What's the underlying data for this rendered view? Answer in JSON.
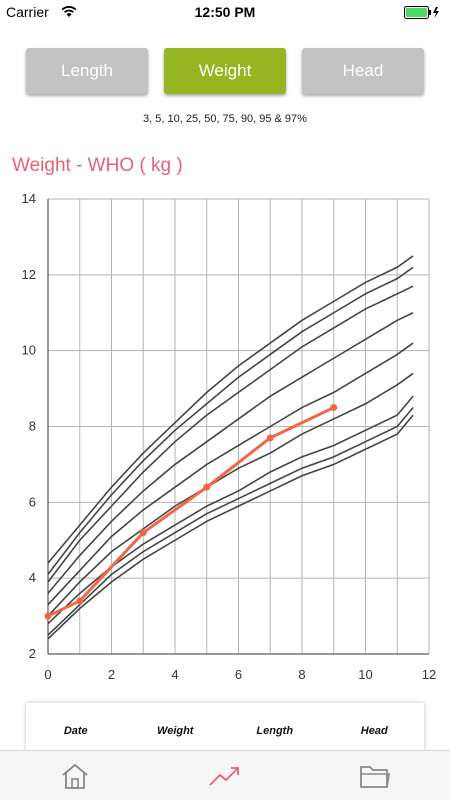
{
  "status": {
    "carrier": "Carrier",
    "time": "12:50 PM",
    "wifi_icon": "wifi-icon",
    "battery_icon": "battery-icon"
  },
  "tabs_top": {
    "length": "Length",
    "weight": "Weight",
    "head": "Head",
    "active": "Weight",
    "active_color": "#96b621",
    "inactive_color": "#c3c3c3"
  },
  "percentile_note": "3, 5, 10, 25, 50, 75, 90, 95 & 97%",
  "chart_title": "Weight - WHO ( kg )",
  "chart_data": {
    "type": "line",
    "xlim": [
      0,
      12
    ],
    "ylim": [
      2,
      14
    ],
    "x_ticks": [
      0,
      2,
      4,
      6,
      8,
      10,
      12
    ],
    "y_ticks": [
      2,
      4,
      6,
      8,
      10,
      12,
      14
    ],
    "grid": true,
    "percentile_x": [
      0,
      1,
      2,
      3,
      4,
      5,
      6,
      7,
      8,
      9,
      10,
      11,
      11.5
    ],
    "percentile_curves": [
      [
        2.4,
        3.2,
        3.9,
        4.5,
        5.0,
        5.5,
        5.9,
        6.3,
        6.7,
        7.0,
        7.4,
        7.8,
        8.3
      ],
      [
        2.5,
        3.3,
        4.1,
        4.7,
        5.2,
        5.7,
        6.1,
        6.5,
        6.9,
        7.2,
        7.6,
        8.0,
        8.5
      ],
      [
        2.8,
        3.6,
        4.3,
        4.9,
        5.4,
        5.9,
        6.3,
        6.8,
        7.2,
        7.5,
        7.9,
        8.3,
        8.8
      ],
      [
        3.0,
        3.9,
        4.7,
        5.3,
        5.9,
        6.4,
        6.9,
        7.3,
        7.8,
        8.2,
        8.6,
        9.1,
        9.4
      ],
      [
        3.3,
        4.2,
        5.1,
        5.8,
        6.4,
        7.0,
        7.5,
        8.0,
        8.5,
        8.9,
        9.4,
        9.9,
        10.2
      ],
      [
        3.6,
        4.6,
        5.5,
        6.3,
        7.0,
        7.6,
        8.2,
        8.8,
        9.3,
        9.8,
        10.3,
        10.8,
        11.0
      ],
      [
        3.9,
        5.0,
        5.9,
        6.8,
        7.6,
        8.3,
        8.9,
        9.5,
        10.1,
        10.6,
        11.1,
        11.5,
        11.7
      ],
      [
        4.1,
        5.2,
        6.2,
        7.1,
        7.9,
        8.6,
        9.3,
        9.9,
        10.5,
        11.0,
        11.5,
        11.9,
        12.2
      ],
      [
        4.4,
        5.4,
        6.4,
        7.3,
        8.1,
        8.9,
        9.6,
        10.2,
        10.8,
        11.3,
        11.8,
        12.2,
        12.5
      ]
    ],
    "child_series": {
      "x": [
        0,
        1,
        3,
        5,
        7,
        9
      ],
      "y": [
        3.0,
        3.4,
        5.2,
        6.4,
        7.7,
        8.5
      ],
      "color": "#f26545"
    },
    "percentile_color": "#444444",
    "grid_color": "#b5b5b5"
  },
  "table": {
    "headers": [
      "Date",
      "Weight",
      "Length",
      "Head"
    ]
  },
  "tabbar": {
    "home_icon": "home-icon",
    "chart_icon": "trend-chart-icon",
    "folder_icon": "folder-icon",
    "active_color": "#e8607a"
  }
}
